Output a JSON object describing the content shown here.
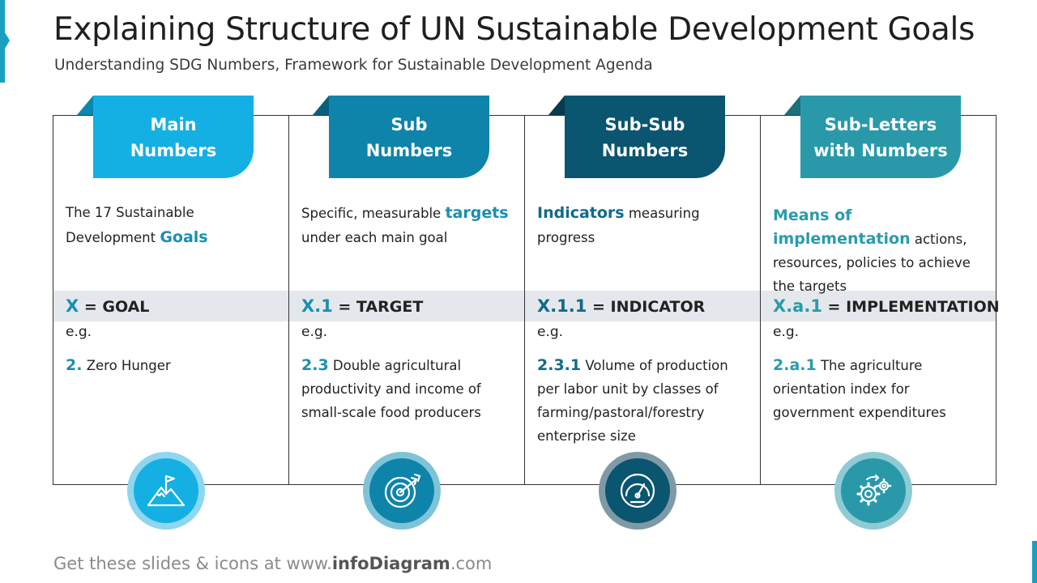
{
  "title": "Explaining Structure of UN Sustainable Development Goals",
  "subtitle": "Understanding SDG Numbers, Framework for Sustainable Development Agenda",
  "colors": {
    "accent": "#1a9fc0",
    "band": "#e4e8ec"
  },
  "columns": [
    {
      "header_line1": "Main",
      "header_line2": "Numbers",
      "color": "#14b0e3",
      "fold": "#0d86b0",
      "desc_pre": "The 17 Sustainable Development ",
      "desc_hl": "Goals",
      "desc_post": "",
      "code": "X",
      "code_label": " = GOAL",
      "eg": "e.g.",
      "example_num": "2.",
      "example_text": " Zero Hunger",
      "icon": "mountain-flag-icon"
    },
    {
      "header_line1": "Sub",
      "header_line2": "Numbers",
      "color": "#0e84aa",
      "fold": "#0a5f7c",
      "desc_pre": "Specific, measurable ",
      "desc_hl": "targets",
      "desc_post": " under each main goal",
      "code": "X.1",
      "code_label": " = TARGET",
      "eg": "e.g.",
      "example_num": "2.3",
      "example_text": " Double agricultural productivity and income of small-scale food producers",
      "icon": "target-arrow-icon"
    },
    {
      "header_line1": "Sub-Sub",
      "header_line2": "Numbers",
      "color": "#0a5570",
      "fold": "#073a4d",
      "desc_pre": "",
      "desc_hl": "Indicators",
      "desc_post": " measuring progress",
      "code": "X.1.1",
      "code_label": " = INDICATOR",
      "eg": "e.g.",
      "example_num": "2.3.1",
      "example_text": " Volume of production per labor unit by classes of farming/pastoral/forestry enterprise size",
      "icon": "gauge-icon"
    },
    {
      "header_line1": "Sub-Letters",
      "header_line2": "with Numbers",
      "color": "#2999aa",
      "fold": "#1c6f7c",
      "desc_pre": "",
      "desc_hl": "Means of implementation",
      "desc_post": " actions, resources,  policies to achieve the targets",
      "code": "X.a.1",
      "code_label": " = IMPLEMENTATION",
      "eg": "e.g.",
      "example_num": "2.a.1",
      "example_text": " The agriculture orientation index for government expenditures",
      "icon": "gears-icon"
    }
  ],
  "footer": {
    "pre": "Get these slides & icons at www.",
    "brand": "infoDiagram",
    "post": ".com"
  }
}
